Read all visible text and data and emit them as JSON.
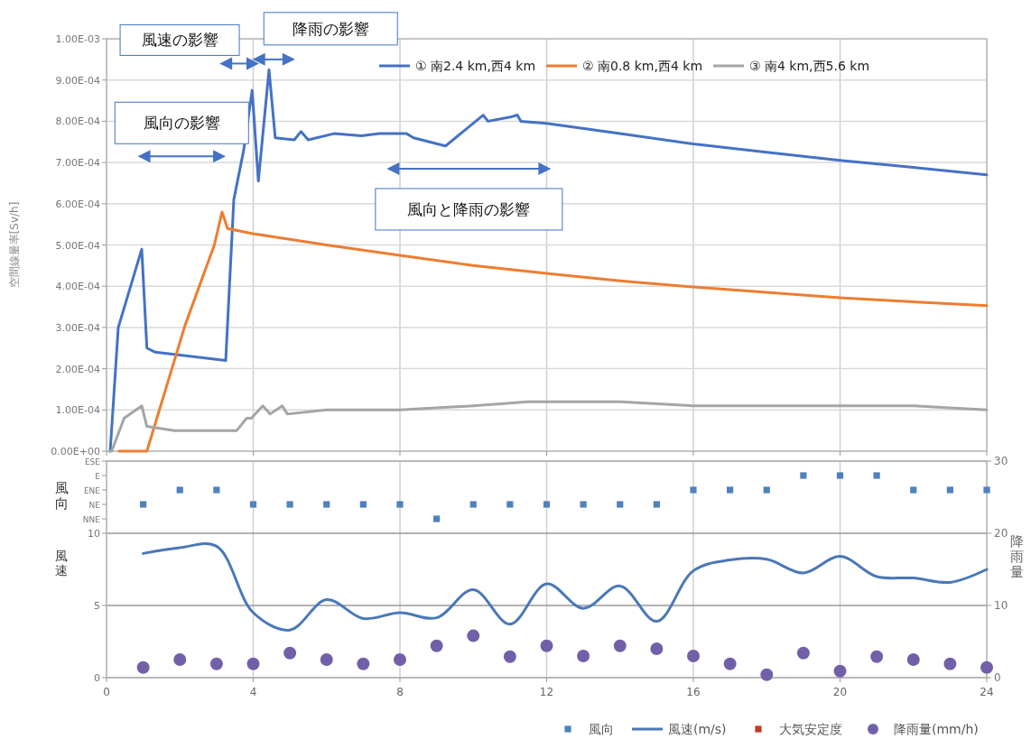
{
  "chart_data": [
    {
      "type": "line",
      "ylabel": "空間線量率[Sv/h]",
      "xlim": [
        0,
        24
      ],
      "xticks": [
        0,
        4,
        8,
        12,
        16,
        20,
        24
      ],
      "ylim": [
        0,
        0.001
      ],
      "yticks": [
        {
          "value": 0,
          "label": "0.00E+00"
        },
        {
          "value": 0.0001,
          "label": "1.00E-04"
        },
        {
          "value": 0.0002,
          "label": "2.00E-04"
        },
        {
          "value": 0.0003,
          "label": "3.00E-04"
        },
        {
          "value": 0.0004,
          "label": "4.00E-04"
        },
        {
          "value": 0.0005,
          "label": "5.00E-04"
        },
        {
          "value": 0.0006,
          "label": "6.00E-04"
        },
        {
          "value": 0.0007,
          "label": "7.00E-04"
        },
        {
          "value": 0.0008,
          "label": "8.00E-04"
        },
        {
          "value": 0.0009,
          "label": "9.00E-04"
        },
        {
          "value": 0.001,
          "label": "1.00E-03"
        }
      ],
      "tick_labels": "y",
      "grid": true,
      "legend": "top",
      "line_style": "solid",
      "marker": "none",
      "annotations": [
        "風向の影響",
        "風速の影響",
        "降雨の影響",
        "風向と降雨の影響"
      ],
      "series": [
        {
          "name": "① 南2.4 km,西4 km",
          "color": "#4472c4",
          "x": [
            0.1,
            0.32,
            0.96,
            1.1,
            1.33,
            3.25,
            3.47,
            3.74,
            3.97,
            4.14,
            4.43,
            4.6,
            5.12,
            5.3,
            5.5,
            6.2,
            6.95,
            7.44,
            8.18,
            8.37,
            9.24,
            10.27,
            10.4,
            11.0,
            11.2,
            11.3,
            12,
            14,
            16,
            18,
            20,
            22,
            24
          ],
          "values": [
            0,
            0.0003,
            0.00049,
            0.00025,
            0.00024,
            0.00022,
            0.00061,
            0.00073,
            0.000875,
            0.000655,
            0.000925,
            0.00076,
            0.000755,
            0.000775,
            0.000755,
            0.00077,
            0.000765,
            0.00077,
            0.00077,
            0.00076,
            0.00074,
            0.000815,
            0.0008,
            0.00081,
            0.000815,
            0.0008,
            0.000795,
            0.00077,
            0.000745,
            0.000725,
            0.000705,
            0.000688,
            0.00067
          ]
        },
        {
          "name": "② 南0.8 km,西4 km",
          "color": "#ed7d31",
          "x": [
            0.34,
            1.1,
            2.14,
            2.94,
            3.15,
            3.3,
            3.96,
            6,
            8,
            10,
            12,
            14,
            16,
            18,
            20,
            22,
            24
          ],
          "values": [
            0,
            0,
            0.000305,
            0.0005,
            0.00058,
            0.00054,
            0.000528,
            0.0005,
            0.000475,
            0.00045,
            0.000431,
            0.000413,
            0.000398,
            0.000385,
            0.000372,
            0.000362,
            0.000353
          ]
        },
        {
          "name": "③ 南4 km,西5.6 km",
          "color": "#a5a5a5",
          "x": [
            0.08,
            0.14,
            0.48,
            0.96,
            1.1,
            1.85,
            3.55,
            3.82,
            3.95,
            4.26,
            4.46,
            4.79,
            4.93,
            6,
            8,
            10,
            11.5,
            14,
            16,
            18,
            20,
            22,
            24
          ],
          "values": [
            0,
            0,
            8e-05,
            0.00011,
            6e-05,
            5e-05,
            5e-05,
            8e-05,
            8e-05,
            0.00011,
            9e-05,
            0.00011,
            9e-05,
            0.0001,
            0.0001,
            0.00011,
            0.00012,
            0.00012,
            0.00011,
            0.00011,
            0.00011,
            0.00011,
            0.0001
          ]
        }
      ]
    },
    {
      "type": "line",
      "ylabel": "風速",
      "y2label": "降雨量",
      "annotations": [
        "風向"
      ],
      "xlim": [
        0,
        24
      ],
      "xticks": [
        0,
        4,
        8,
        12,
        16,
        20,
        24
      ],
      "ylim": [
        0,
        15
      ],
      "yticks": [
        0,
        5,
        10,
        {
          "value": 11,
          "label": "NNE"
        },
        {
          "value": 12,
          "label": "NE"
        },
        {
          "value": 13,
          "label": "ENE"
        },
        {
          "value": 14,
          "label": "E"
        },
        {
          "value": 15,
          "label": "ESE"
        }
      ],
      "y2lim": [
        0,
        30
      ],
      "y2ticks": [
        0,
        10,
        20,
        30
      ],
      "grid": true,
      "legend": "bottom",
      "series": [
        {
          "name": "風向",
          "type": "scatter",
          "marker": "square",
          "color": "#4f81bd",
          "x": [
            1,
            2,
            3,
            4,
            5,
            6,
            7,
            8,
            9,
            10,
            11,
            12,
            13,
            14,
            15,
            16,
            17,
            18,
            19,
            20,
            21,
            22,
            23,
            24
          ],
          "values": [
            12,
            13,
            13,
            12,
            12,
            12,
            12,
            12,
            11,
            12,
            12,
            12,
            12,
            12,
            12,
            13,
            13,
            13,
            14,
            14,
            14,
            13,
            13,
            13
          ]
        },
        {
          "name": "風速(m/s)",
          "marker": "none",
          "color": "#4a78b8",
          "x": [
            1,
            2,
            3,
            4,
            5,
            6,
            7,
            8,
            9,
            10,
            11,
            12,
            13,
            14,
            15,
            16,
            17,
            18,
            19,
            20,
            21,
            22,
            23,
            24
          ],
          "values": [
            8.6,
            9.0,
            9.1,
            4.5,
            3.3,
            5.4,
            4.1,
            4.5,
            4.15,
            6.1,
            3.7,
            6.5,
            4.8,
            6.35,
            3.9,
            7.4,
            8.15,
            8.2,
            7.25,
            8.4,
            7.0,
            6.9,
            6.6,
            7.5
          ]
        },
        {
          "name": "大気安定度",
          "type": "scatter",
          "marker": "square",
          "color": "#c0392b"
        },
        {
          "name": "降雨量(mm/h)",
          "type": "scatter",
          "marker": "circle",
          "axis": "y2",
          "color": "#7160a8",
          "x": [
            1,
            2,
            3,
            4,
            5,
            6,
            7,
            8,
            9,
            10,
            11,
            12,
            13,
            14,
            15,
            16,
            17,
            18,
            19,
            20,
            21,
            22,
            23,
            24
          ],
          "values": [
            1.4,
            2.5,
            1.9,
            1.9,
            3.4,
            2.5,
            1.9,
            2.5,
            4.4,
            5.8,
            2.9,
            4.4,
            3.0,
            4.4,
            4.0,
            3.0,
            1.9,
            0.4,
            3.4,
            0.9,
            2.9,
            2.5,
            1.9,
            1.4
          ]
        }
      ]
    }
  ]
}
